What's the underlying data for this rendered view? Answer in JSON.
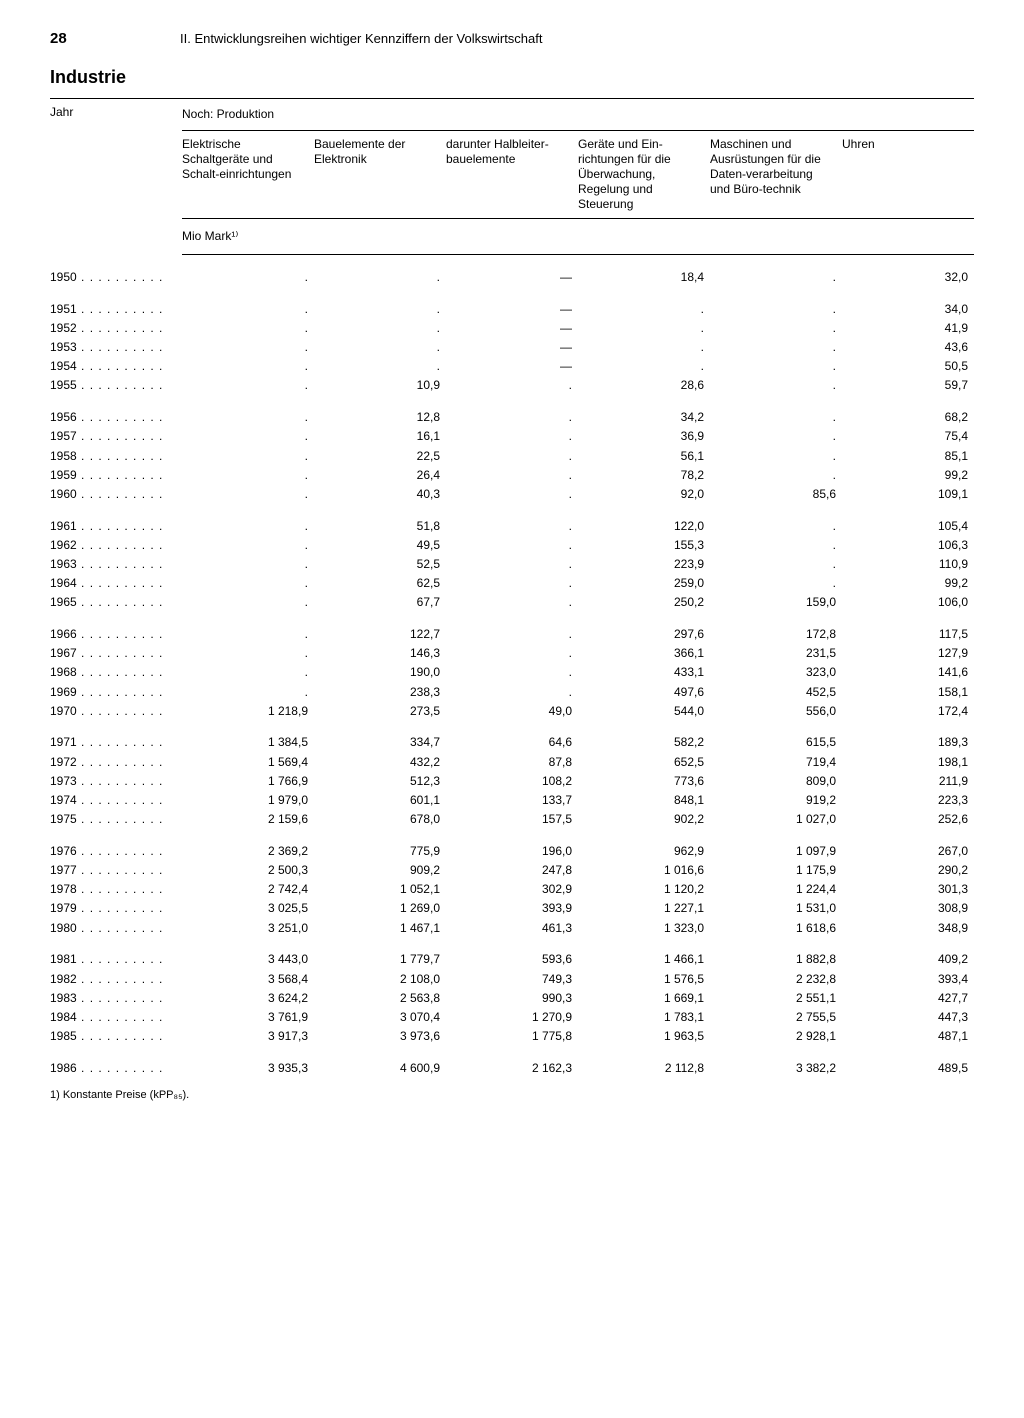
{
  "page_number": "28",
  "chapter_title": "II. Entwicklungsreihen wichtiger Kennziffern der Volkswirtschaft",
  "section_title": "Industrie",
  "table": {
    "year_header": "Jahr",
    "super_header": "Noch: Produktion",
    "unit_label": "Mio Mark¹⁾",
    "columns": [
      "Elektrische Schaltgeräte und Schalt-einrichtungen",
      "Bauelemente der Elektronik",
      "darunter Halbleiter-bauelemente",
      "Geräte und Ein-richtungen für die Überwachung, Regelung und Steuerung",
      "Maschinen und Ausrüstungen für die Daten-verarbeitung und Büro-technik",
      "Uhren"
    ],
    "groups": [
      {
        "rows": [
          {
            "year": "1950",
            "v": [
              ".",
              ".",
              "—",
              "18,4",
              ".",
              "32,0"
            ]
          }
        ]
      },
      {
        "rows": [
          {
            "year": "1951",
            "v": [
              ".",
              ".",
              "—",
              ".",
              ".",
              "34,0"
            ]
          },
          {
            "year": "1952",
            "v": [
              ".",
              ".",
              "—",
              ".",
              ".",
              "41,9"
            ]
          },
          {
            "year": "1953",
            "v": [
              ".",
              ".",
              "—",
              ".",
              ".",
              "43,6"
            ]
          },
          {
            "year": "1954",
            "v": [
              ".",
              ".",
              "—",
              ".",
              ".",
              "50,5"
            ]
          },
          {
            "year": "1955",
            "v": [
              ".",
              "10,9",
              ".",
              "28,6",
              ".",
              "59,7"
            ]
          }
        ]
      },
      {
        "rows": [
          {
            "year": "1956",
            "v": [
              ".",
              "12,8",
              ".",
              "34,2",
              ".",
              "68,2"
            ]
          },
          {
            "year": "1957",
            "v": [
              ".",
              "16,1",
              ".",
              "36,9",
              ".",
              "75,4"
            ]
          },
          {
            "year": "1958",
            "v": [
              ".",
              "22,5",
              ".",
              "56,1",
              ".",
              "85,1"
            ]
          },
          {
            "year": "1959",
            "v": [
              ".",
              "26,4",
              ".",
              "78,2",
              ".",
              "99,2"
            ]
          },
          {
            "year": "1960",
            "v": [
              ".",
              "40,3",
              ".",
              "92,0",
              "85,6",
              "109,1"
            ]
          }
        ]
      },
      {
        "rows": [
          {
            "year": "1961",
            "v": [
              ".",
              "51,8",
              ".",
              "122,0",
              ".",
              "105,4"
            ]
          },
          {
            "year": "1962",
            "v": [
              ".",
              "49,5",
              ".",
              "155,3",
              ".",
              "106,3"
            ]
          },
          {
            "year": "1963",
            "v": [
              ".",
              "52,5",
              ".",
              "223,9",
              ".",
              "110,9"
            ]
          },
          {
            "year": "1964",
            "v": [
              ".",
              "62,5",
              ".",
              "259,0",
              ".",
              "99,2"
            ]
          },
          {
            "year": "1965",
            "v": [
              ".",
              "67,7",
              ".",
              "250,2",
              "159,0",
              "106,0"
            ]
          }
        ]
      },
      {
        "rows": [
          {
            "year": "1966",
            "v": [
              ".",
              "122,7",
              ".",
              "297,6",
              "172,8",
              "117,5"
            ]
          },
          {
            "year": "1967",
            "v": [
              ".",
              "146,3",
              ".",
              "366,1",
              "231,5",
              "127,9"
            ]
          },
          {
            "year": "1968",
            "v": [
              ".",
              "190,0",
              ".",
              "433,1",
              "323,0",
              "141,6"
            ]
          },
          {
            "year": "1969",
            "v": [
              ".",
              "238,3",
              ".",
              "497,6",
              "452,5",
              "158,1"
            ]
          },
          {
            "year": "1970",
            "v": [
              "1 218,9",
              "273,5",
              "49,0",
              "544,0",
              "556,0",
              "172,4"
            ]
          }
        ]
      },
      {
        "rows": [
          {
            "year": "1971",
            "v": [
              "1 384,5",
              "334,7",
              "64,6",
              "582,2",
              "615,5",
              "189,3"
            ]
          },
          {
            "year": "1972",
            "v": [
              "1 569,4",
              "432,2",
              "87,8",
              "652,5",
              "719,4",
              "198,1"
            ]
          },
          {
            "year": "1973",
            "v": [
              "1 766,9",
              "512,3",
              "108,2",
              "773,6",
              "809,0",
              "211,9"
            ]
          },
          {
            "year": "1974",
            "v": [
              "1 979,0",
              "601,1",
              "133,7",
              "848,1",
              "919,2",
              "223,3"
            ]
          },
          {
            "year": "1975",
            "v": [
              "2 159,6",
              "678,0",
              "157,5",
              "902,2",
              "1 027,0",
              "252,6"
            ]
          }
        ]
      },
      {
        "rows": [
          {
            "year": "1976",
            "v": [
              "2 369,2",
              "775,9",
              "196,0",
              "962,9",
              "1 097,9",
              "267,0"
            ]
          },
          {
            "year": "1977",
            "v": [
              "2 500,3",
              "909,2",
              "247,8",
              "1 016,6",
              "1 175,9",
              "290,2"
            ]
          },
          {
            "year": "1978",
            "v": [
              "2 742,4",
              "1 052,1",
              "302,9",
              "1 120,2",
              "1 224,4",
              "301,3"
            ]
          },
          {
            "year": "1979",
            "v": [
              "3 025,5",
              "1 269,0",
              "393,9",
              "1 227,1",
              "1 531,0",
              "308,9"
            ]
          },
          {
            "year": "1980",
            "v": [
              "3 251,0",
              "1 467,1",
              "461,3",
              "1 323,0",
              "1 618,6",
              "348,9"
            ]
          }
        ]
      },
      {
        "rows": [
          {
            "year": "1981",
            "v": [
              "3 443,0",
              "1 779,7",
              "593,6",
              "1 466,1",
              "1 882,8",
              "409,2"
            ]
          },
          {
            "year": "1982",
            "v": [
              "3 568,4",
              "2 108,0",
              "749,3",
              "1 576,5",
              "2 232,8",
              "393,4"
            ]
          },
          {
            "year": "1983",
            "v": [
              "3 624,2",
              "2 563,8",
              "990,3",
              "1 669,1",
              "2 551,1",
              "427,7"
            ]
          },
          {
            "year": "1984",
            "v": [
              "3 761,9",
              "3 070,4",
              "1 270,9",
              "1 783,1",
              "2 755,5",
              "447,3"
            ]
          },
          {
            "year": "1985",
            "v": [
              "3 917,3",
              "3 973,6",
              "1 775,8",
              "1 963,5",
              "2 928,1",
              "487,1"
            ]
          }
        ]
      },
      {
        "rows": [
          {
            "year": "1986",
            "v": [
              "3 935,3",
              "4 600,9",
              "2 162,3",
              "2 112,8",
              "3 382,2",
              "489,5"
            ]
          }
        ]
      }
    ]
  },
  "footnote": "1) Konstante Preise (kPP₈₅)."
}
